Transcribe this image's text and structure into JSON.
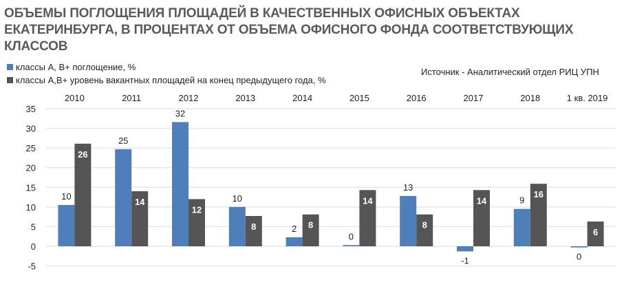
{
  "chart_data": {
    "type": "bar",
    "title": "ОБЪЕМЫ ПОГЛОЩЕНИЯ ПЛОЩАДЕЙ В  КАЧЕСТВЕННЫХ ОФИСНЫХ ОБЪЕКТАХ ЕКАТЕРИНБУРГА, В ПРОЦЕНТАХ ОТ ОБЪЕМА ОФИСНОГО ФОНДА СООТВЕТСТВУЮЩИХ КЛАССОВ",
    "source": "Источник - Аналитический отдел РИЦ УПН",
    "categories": [
      "2010",
      "2011",
      "2012",
      "2013",
      "2014",
      "2015",
      "2016",
      "2017",
      "2018",
      "1 кв. 2019"
    ],
    "series": [
      {
        "name": "классы А, В+ поглощение, %",
        "color": "#4f7fba",
        "values": [
          10.5,
          24.7,
          31.6,
          10.0,
          2.3,
          0.3,
          12.8,
          -1.3,
          9.5,
          -0.3
        ],
        "labels": [
          "10",
          "25",
          "32",
          "10",
          "2",
          "0",
          "13",
          "-1",
          "9",
          "0"
        ]
      },
      {
        "name": "классы А,В+ уровень вакантных площадей на конец предыдущего года, %",
        "color": "#555555",
        "values": [
          26.1,
          14.0,
          12.0,
          7.7,
          8.1,
          14.3,
          8.1,
          14.3,
          15.9,
          6.3
        ],
        "labels": [
          "26",
          "14",
          "12",
          "8",
          "8",
          "14",
          "8",
          "14",
          "16",
          "6"
        ]
      }
    ],
    "yticks": [
      "35",
      "30",
      "25",
      "20",
      "15",
      "10",
      "5",
      "0",
      "-5"
    ],
    "ylim": [
      -5,
      35
    ],
    "grid": true,
    "legend_placement": "top-left",
    "xlabel": "",
    "ylabel": ""
  }
}
